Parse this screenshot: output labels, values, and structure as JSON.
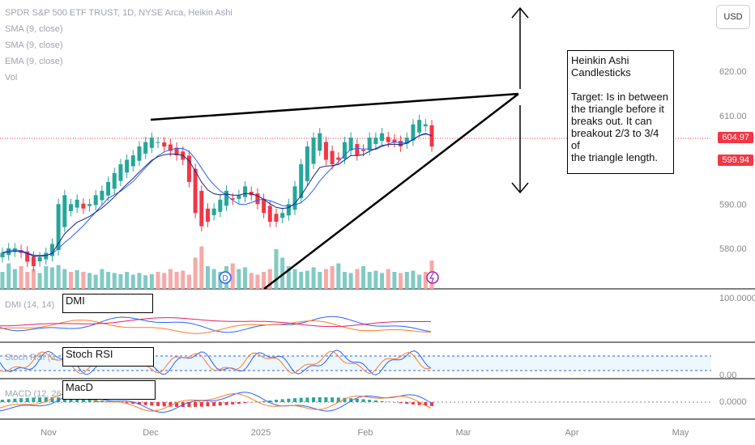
{
  "header": {
    "title": "SPDR S&P 500 ETF TRUST, 1D, NYSE Arca, Heikin Ashi",
    "indicators": [
      "SMA (9, close)",
      "SMA (9, close)",
      "EMA (9, close)",
      "Vol"
    ]
  },
  "currency_label": "USD",
  "note": {
    "lines": [
      "Heinkin Ashi",
      "Candlesticks",
      "",
      "Target: Is in between",
      "the triangle before it",
      "breaks out. It can",
      "breakout  2/3 to 3/4 of",
      "the triangle length."
    ]
  },
  "price_tags": {
    "last": {
      "value": "604.97",
      "color": "#f23645"
    },
    "second": {
      "value": "599.94",
      "color": "#f23645"
    }
  },
  "panes": {
    "dmi": {
      "legend": "DMI (14, 14)",
      "label": "DMI",
      "axis": "100.0000"
    },
    "stoch": {
      "legend": "Stoch RSI (3, 3, 14, 14)",
      "label": "Stoch RSI",
      "axis": "0.00"
    },
    "macd": {
      "legend": "MACD (12, 26, close)",
      "label": "MacD",
      "axis": "0.0000"
    }
  },
  "colors": {
    "up": "#26a69a",
    "down": "#f23645",
    "sma_blue": "#2962ff",
    "sma_dark": "#1a237e",
    "vol_up": "#80cbc4",
    "vol_down": "#f7a9a7",
    "orange": "#ff7b25"
  },
  "chart_data": {
    "type": "candlestick",
    "title": "SPDR S&P 500 ETF TRUST, 1D, NYSE Arca, Heikin Ashi",
    "y_ticks": [
      580,
      590,
      600,
      610,
      620
    ],
    "y_tick_labels": [
      "580.00",
      "590.00",
      "600.00",
      "610.00",
      "620.00"
    ],
    "ylim": [
      573,
      631
    ],
    "x_labels": [
      "Nov",
      "Dec",
      "2025",
      "Feb",
      "Mar",
      "Apr",
      "May"
    ],
    "closes": [
      579,
      580,
      580,
      579,
      577,
      576,
      578,
      579,
      581,
      590,
      592,
      590,
      591,
      589,
      590,
      592,
      593,
      595,
      597,
      599,
      600,
      601,
      603,
      604,
      605,
      604,
      603,
      602,
      601,
      600,
      595,
      588,
      585,
      586,
      589,
      591,
      593,
      591,
      592,
      594,
      592,
      590,
      588,
      586,
      586,
      588,
      590,
      594,
      599,
      603,
      605,
      606,
      600,
      599,
      600,
      604,
      605,
      601,
      602,
      605,
      605,
      606,
      604,
      604,
      603,
      605,
      608,
      609,
      608,
      603
    ],
    "volumes": [
      0.3,
      0.45,
      0.35,
      0.4,
      0.3,
      0.35,
      0.28,
      0.4,
      0.38,
      0.42,
      0.35,
      0.3,
      0.33,
      0.3,
      0.28,
      0.25,
      0.35,
      0.3,
      0.28,
      0.26,
      0.3,
      0.25,
      0.28,
      0.24,
      0.26,
      0.3,
      0.28,
      0.35,
      0.3,
      0.32,
      0.25,
      0.55,
      0.75,
      0.4,
      0.35,
      0.3,
      0.4,
      0.45,
      0.35,
      0.38,
      0.28,
      0.25,
      0.3,
      0.35,
      0.7,
      0.55,
      0.4,
      0.35,
      0.3,
      0.32,
      0.38,
      0.3,
      0.35,
      0.4,
      0.45,
      0.3,
      0.28,
      0.35,
      0.4,
      0.3,
      0.32,
      0.28,
      0.35,
      0.3,
      0.28,
      0.3,
      0.32,
      0.25,
      0.3,
      0.5
    ]
  }
}
